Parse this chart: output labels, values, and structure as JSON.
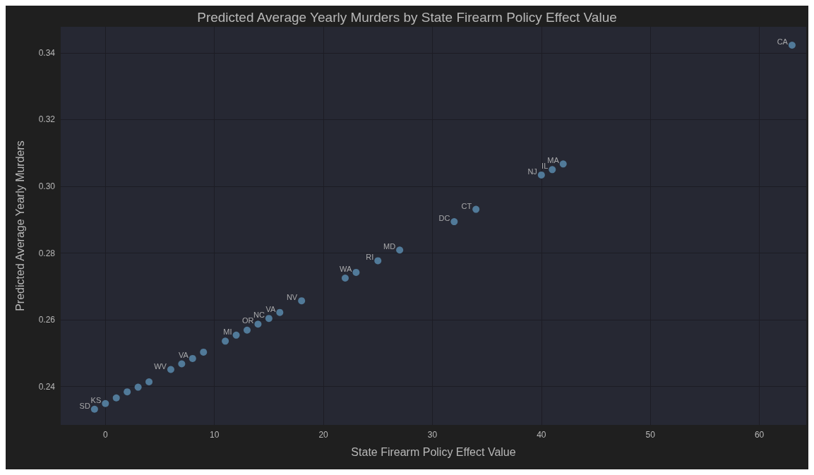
{
  "chart_data": {
    "type": "scatter",
    "title": "Predicted Average Yearly Murders by State Firearm Policy Effect Value",
    "xlabel": "State Firearm Policy Effect Value",
    "ylabel": "Predicted Average Yearly Murders",
    "x": [
      -1,
      0,
      1,
      2,
      3,
      4,
      6,
      7,
      8,
      9,
      11,
      12,
      13,
      14,
      15,
      16,
      18,
      22,
      23,
      25,
      27,
      32,
      34,
      40,
      41,
      42,
      63
    ],
    "values": [
      0.2332,
      0.2349,
      0.2366,
      0.2384,
      0.2398,
      0.2414,
      0.2451,
      0.2468,
      0.2484,
      0.2503,
      0.2536,
      0.2554,
      0.2569,
      0.2587,
      0.2604,
      0.2622,
      0.2657,
      0.2725,
      0.2742,
      0.2777,
      0.2809,
      0.2894,
      0.2931,
      0.3034,
      0.305,
      0.3067,
      0.3423
    ],
    "value_labels": [
      "SD",
      "KS",
      null,
      null,
      null,
      null,
      "WV",
      null,
      "VA",
      null,
      null,
      "MI",
      null,
      "OR",
      "NC",
      "VA",
      "NV",
      null,
      "WA",
      "RI",
      "MD",
      "DC",
      "CT",
      "NJ",
      "IL",
      "MA",
      "CA"
    ],
    "color": "#5d8fb3",
    "marker": "circle",
    "grid": true,
    "xlim": [
      -4.1,
      64.3
    ],
    "xticks": [
      0,
      10,
      20,
      30,
      40,
      50,
      60
    ],
    "ylim": [
      0.2285,
      0.3478
    ],
    "yticks": [
      0.24,
      0.26,
      0.28,
      {
        "value": 0.3,
        "label": "0.30"
      },
      0.32,
      0.34
    ]
  }
}
